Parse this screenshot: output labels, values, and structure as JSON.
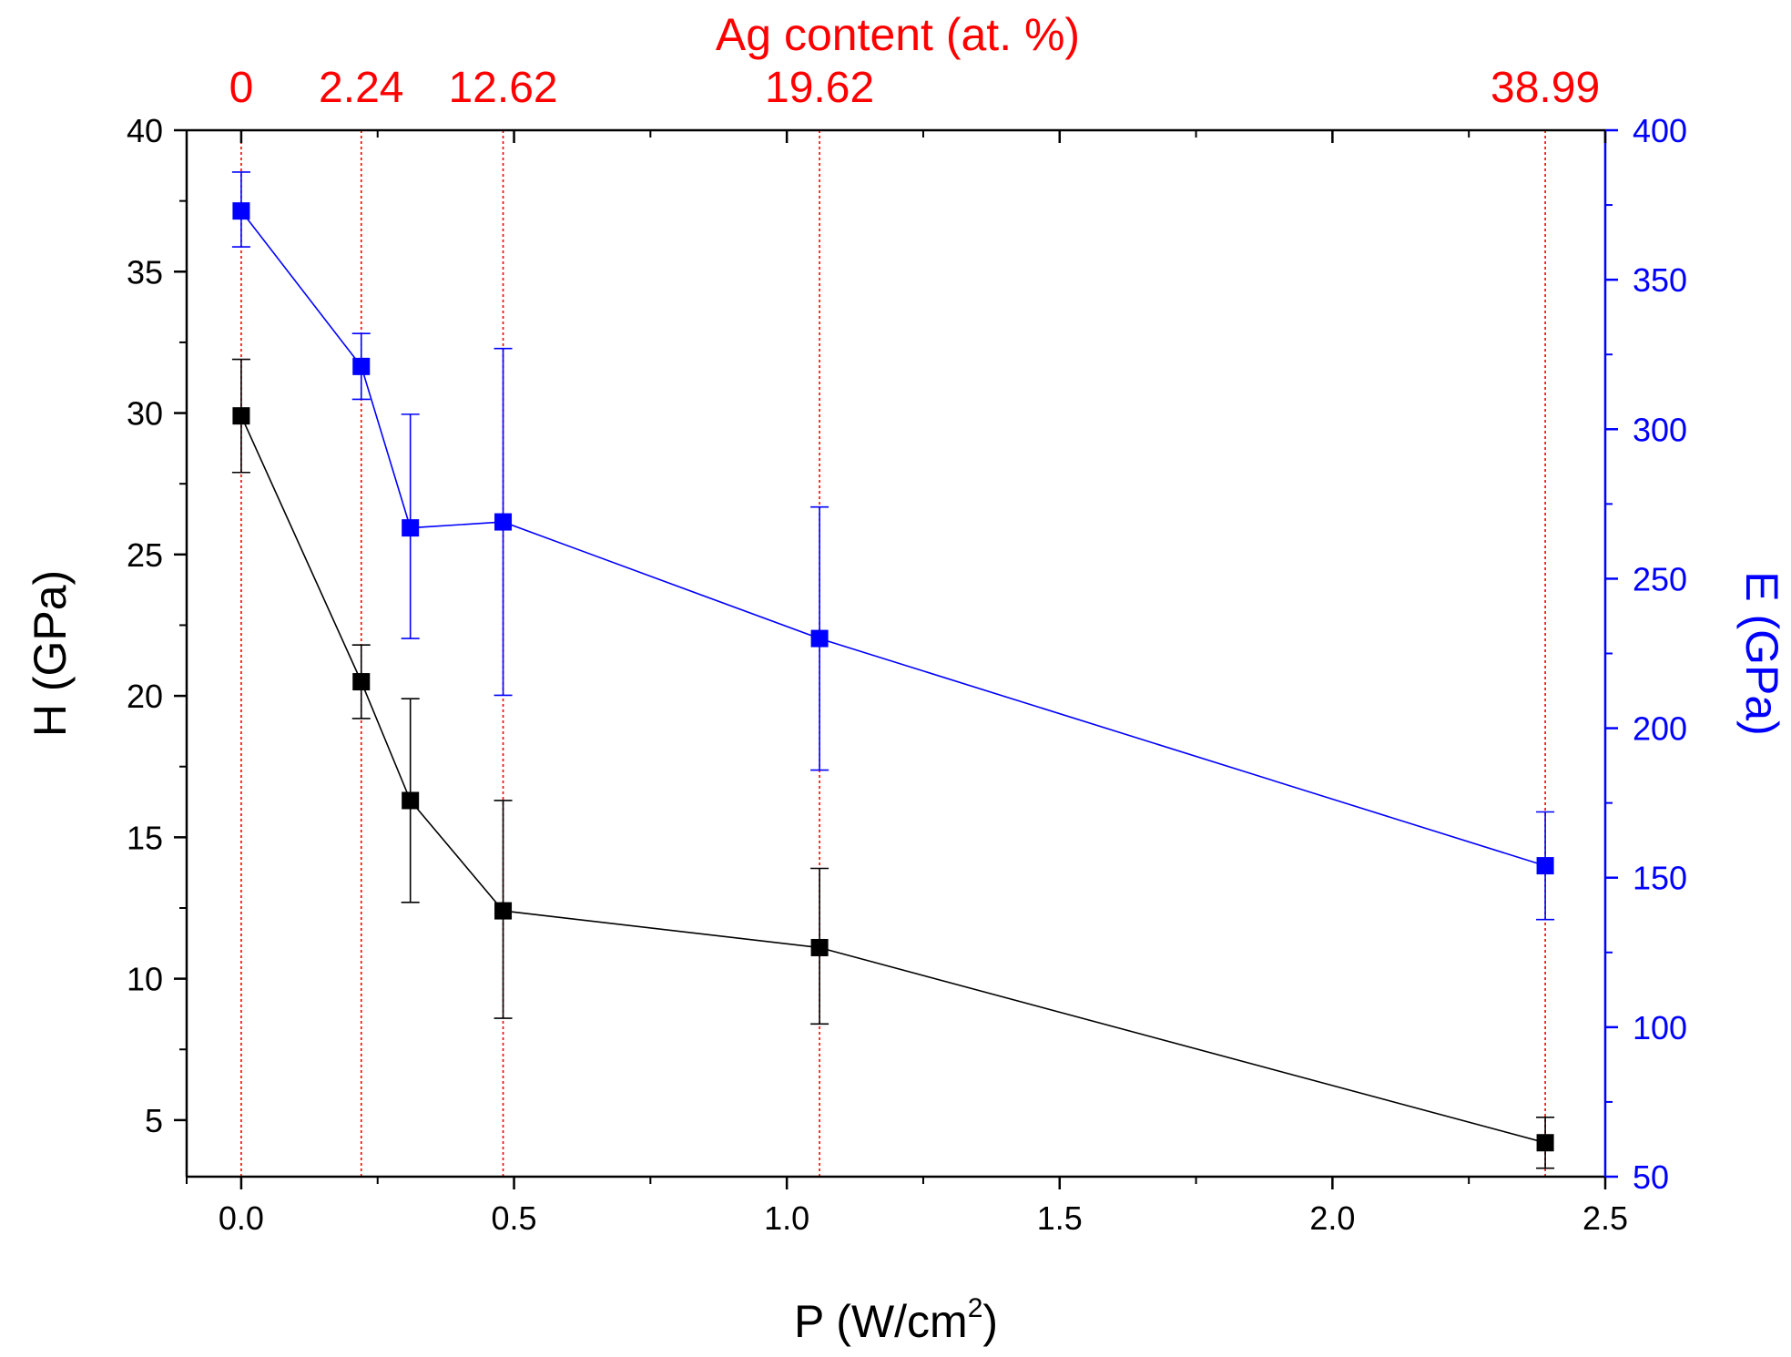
{
  "chart_data": {
    "type": "line",
    "xlabel": "P (W/cm",
    "xlabel_superscript": "2",
    "xlabel_close": ")",
    "ylabel_left": "H (GPa)",
    "ylabel_right": "E (GPa)",
    "top_axis_label": "Ag content (at. %)",
    "xlim": [
      -0.1,
      2.5
    ],
    "ylim_left": [
      3,
      40
    ],
    "ylim_right": [
      50,
      400
    ],
    "x_ticks": [
      "0.0",
      "0.5",
      "1.0",
      "1.5",
      "2.0",
      "2.5"
    ],
    "y_left_ticks": [
      "5",
      "10",
      "15",
      "20",
      "25",
      "30",
      "35",
      "40"
    ],
    "y_right_ticks": [
      "50",
      "100",
      "150",
      "200",
      "250",
      "300",
      "350",
      "400"
    ],
    "top_ticks": [
      {
        "x": 0.0,
        "label": "0"
      },
      {
        "x": 0.22,
        "label": "2.24"
      },
      {
        "x": 0.48,
        "label": "12.62"
      },
      {
        "x": 1.06,
        "label": "19.62"
      },
      {
        "x": 2.39,
        "label": "38.99"
      }
    ],
    "series": [
      {
        "axis": "left",
        "color": "#000000",
        "points": [
          {
            "x": 0.0,
            "y": 29.9,
            "err_low": 27.9,
            "err_high": 31.9
          },
          {
            "x": 0.22,
            "y": 20.5,
            "err_low": 19.2,
            "err_high": 21.8
          },
          {
            "x": 0.31,
            "y": 16.3,
            "err_low": 12.7,
            "err_high": 19.9
          },
          {
            "x": 0.48,
            "y": 12.4,
            "err_low": 8.6,
            "err_high": 16.3
          },
          {
            "x": 1.06,
            "y": 11.1,
            "err_low": 8.4,
            "err_high": 13.9
          },
          {
            "x": 2.39,
            "y": 4.2,
            "err_low": 3.3,
            "err_high": 5.1
          }
        ]
      },
      {
        "axis": "right",
        "color": "#0000ff",
        "points": [
          {
            "x": 0.0,
            "y": 373,
            "err_low": 361,
            "err_high": 386
          },
          {
            "x": 0.22,
            "y": 321,
            "err_low": 310,
            "err_high": 332
          },
          {
            "x": 0.31,
            "y": 267,
            "err_low": 230,
            "err_high": 305
          },
          {
            "x": 0.48,
            "y": 269,
            "err_low": 211,
            "err_high": 327
          },
          {
            "x": 1.06,
            "y": 230,
            "err_low": 186,
            "err_high": 274
          },
          {
            "x": 2.39,
            "y": 154,
            "err_low": 136,
            "err_high": 172
          }
        ]
      }
    ],
    "colors": {
      "left_axis": "#000000",
      "right_axis": "#0000ff",
      "top_axis": "#ff0000",
      "reference_lines": "#ff0000"
    }
  }
}
